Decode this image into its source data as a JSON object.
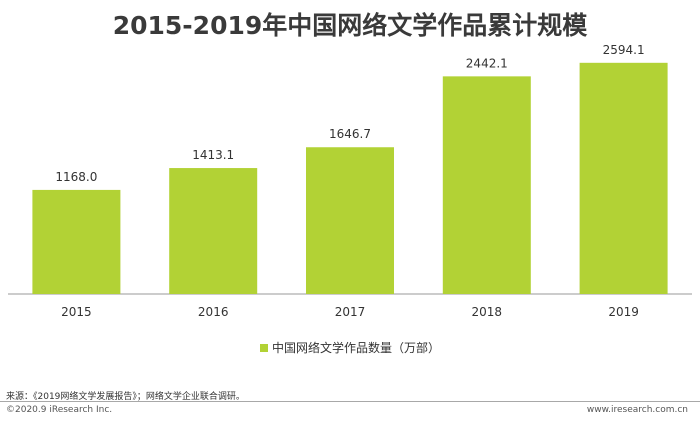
{
  "title": "2015-2019年中国网络文学作品累计规模",
  "chart_data": {
    "type": "bar",
    "categories": [
      "2015",
      "2016",
      "2017",
      "2018",
      "2019"
    ],
    "series": [
      {
        "name": "中国网络文学作品数量（万部）",
        "values": [
          1168.0,
          1413.1,
          1646.7,
          2442.1,
          2594.1
        ]
      }
    ],
    "value_labels": [
      "1168.0",
      "1413.1",
      "1646.7",
      "2442.1",
      "2594.1"
    ],
    "ylim": [
      0,
      2850
    ],
    "grid": false,
    "legend_position": "bottom",
    "bar_color": "#b2d235"
  },
  "source": "来源：《2019网络文学发展报告》；网络文学企业联合调研。",
  "footer": {
    "copyright": "©2020.9 iResearch Inc.",
    "website": "www.iresearch.com.cn"
  }
}
